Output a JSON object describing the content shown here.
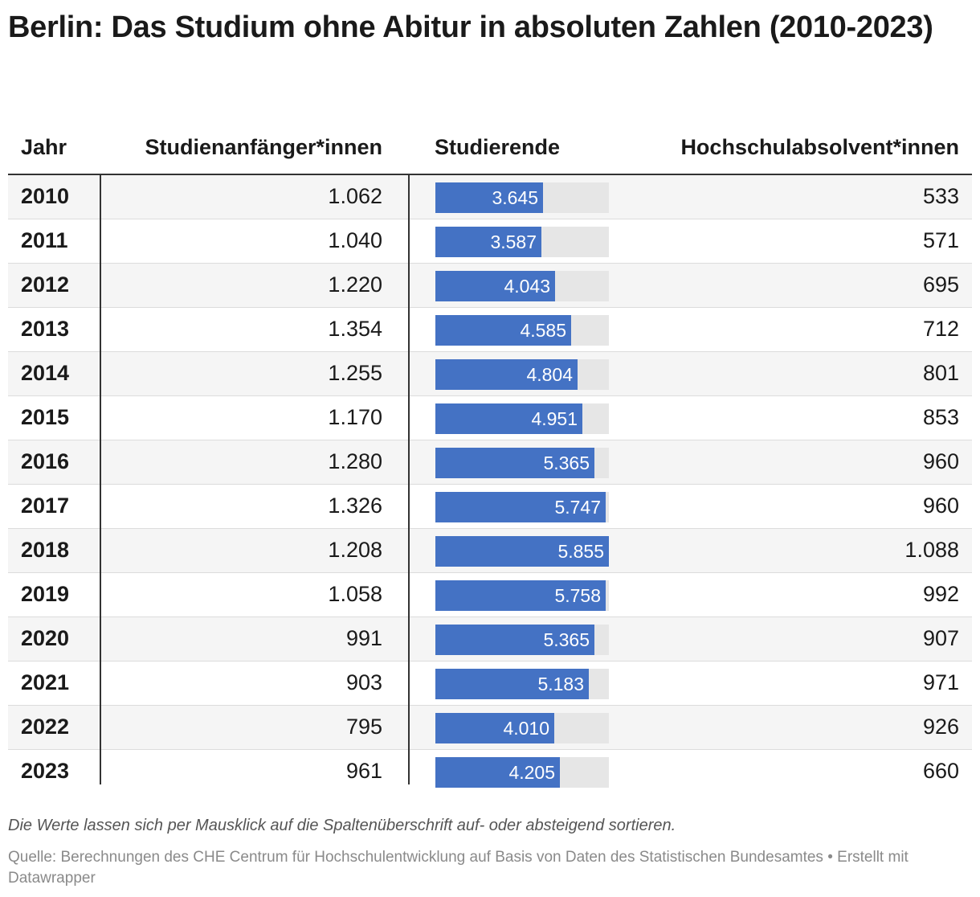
{
  "title": "Berlin: Das Studium ohne Abitur in absoluten Zahlen (2010-2023)",
  "headers": {
    "year": "Jahr",
    "start": "Studienanfänger*innen",
    "stud": "Studierende",
    "grad": "Hochschulabsolvent*innen"
  },
  "chart_data": {
    "type": "table",
    "title": "Berlin: Das Studium ohne Abitur in absoluten Zahlen (2010-2023)",
    "columns": [
      "Jahr",
      "Studienanfänger*innen",
      "Studierende",
      "Hochschulabsolvent*innen"
    ],
    "bar_column": "Studierende",
    "bar_max": 5855,
    "bar_color": "#4472c4",
    "rows": [
      {
        "year": "2010",
        "start": "1.062",
        "stud": "3.645",
        "stud_value": 3645,
        "grad": "533"
      },
      {
        "year": "2011",
        "start": "1.040",
        "stud": "3.587",
        "stud_value": 3587,
        "grad": "571"
      },
      {
        "year": "2012",
        "start": "1.220",
        "stud": "4.043",
        "stud_value": 4043,
        "grad": "695"
      },
      {
        "year": "2013",
        "start": "1.354",
        "stud": "4.585",
        "stud_value": 4585,
        "grad": "712"
      },
      {
        "year": "2014",
        "start": "1.255",
        "stud": "4.804",
        "stud_value": 4804,
        "grad": "801"
      },
      {
        "year": "2015",
        "start": "1.170",
        "stud": "4.951",
        "stud_value": 4951,
        "grad": "853"
      },
      {
        "year": "2016",
        "start": "1.280",
        "stud": "5.365",
        "stud_value": 5365,
        "grad": "960"
      },
      {
        "year": "2017",
        "start": "1.326",
        "stud": "5.747",
        "stud_value": 5747,
        "grad": "960"
      },
      {
        "year": "2018",
        "start": "1.208",
        "stud": "5.855",
        "stud_value": 5855,
        "grad": "1.088"
      },
      {
        "year": "2019",
        "start": "1.058",
        "stud": "5.758",
        "stud_value": 5758,
        "grad": "992"
      },
      {
        "year": "2020",
        "start": "991",
        "stud": "5.365",
        "stud_value": 5365,
        "grad": "907"
      },
      {
        "year": "2021",
        "start": "903",
        "stud": "5.183",
        "stud_value": 5183,
        "grad": "971"
      },
      {
        "year": "2022",
        "start": "795",
        "stud": "4.010",
        "stud_value": 4010,
        "grad": "926"
      },
      {
        "year": "2023",
        "start": "961",
        "stud": "4.205",
        "stud_value": 4205,
        "grad": "660"
      }
    ]
  },
  "note": "Die Werte lassen sich per Mausklick auf die Spaltenüberschrift auf- oder absteigend sortieren.",
  "source": "Quelle: Berechnungen des CHE Centrum für Hochschulentwicklung auf Basis von Daten des Statistischen Bundesamtes • Erstellt mit Datawrapper"
}
